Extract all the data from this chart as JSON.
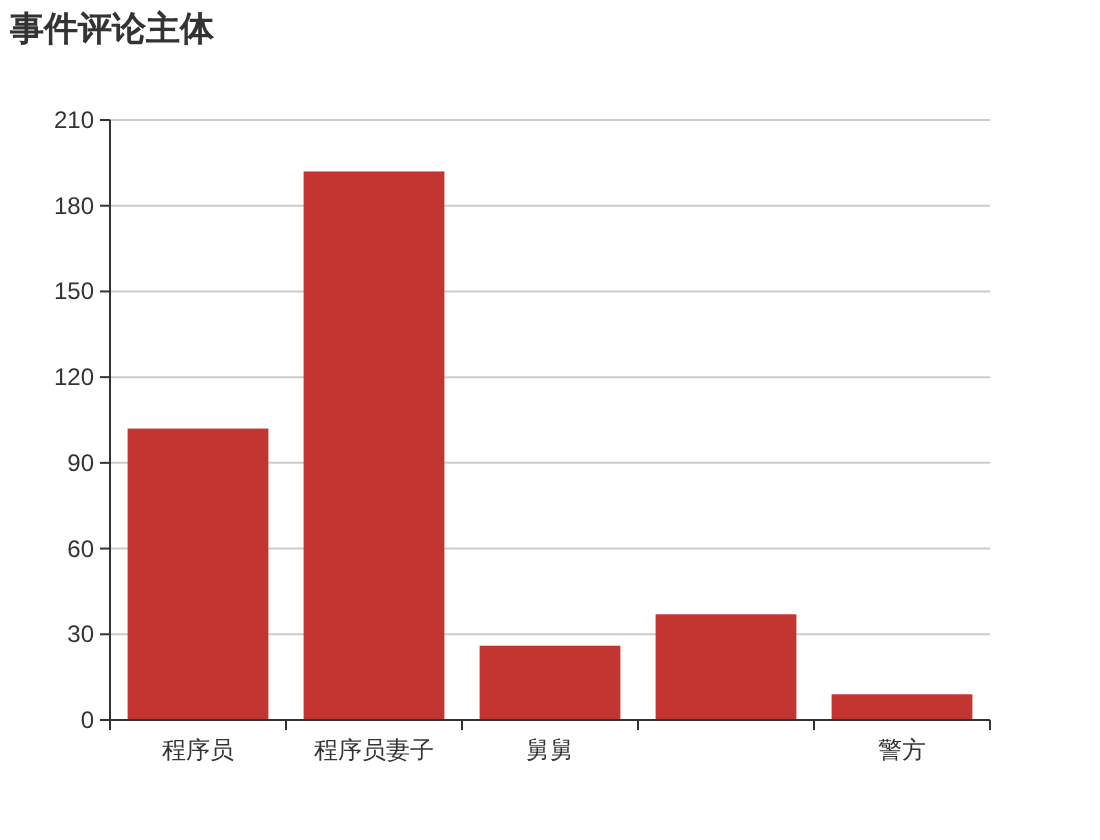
{
  "chart_data": {
    "type": "bar",
    "title": "事件评论主体",
    "categories": [
      "程序员",
      "程序员妻子",
      "舅舅",
      null,
      "警方"
    ],
    "values": [
      102,
      192,
      26,
      37,
      9
    ],
    "color": "#c23531",
    "ylim": [
      0,
      210
    ],
    "yticks": [
      0,
      30,
      60,
      90,
      120,
      150,
      180,
      210
    ],
    "grid": "y"
  }
}
